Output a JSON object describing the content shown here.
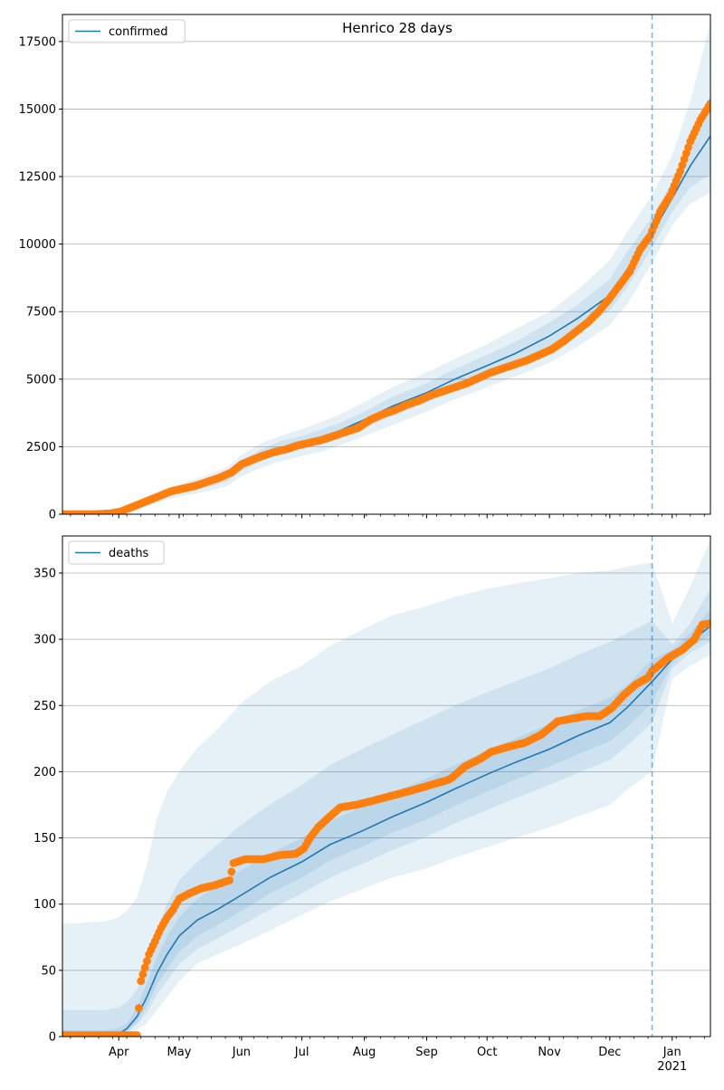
{
  "chart_data": [
    {
      "type": "line",
      "title": "Henrico 28 days",
      "xlabel": "",
      "ylabel": "",
      "x_range": [
        "2020-03-04",
        "2021-01-20"
      ],
      "ylim": [
        0,
        18500
      ],
      "yticks": [
        0,
        2500,
        5000,
        7500,
        10000,
        12500,
        15000,
        17500
      ],
      "grid": "y",
      "legend": {
        "position": "top-left",
        "entries": [
          "confirmed"
        ]
      },
      "forecast_start": "2020-12-22",
      "series": [
        {
          "name": "confirmed",
          "kind": "model-median",
          "color": "#1f77b4",
          "x": [
            "2020-03-04",
            "2020-03-25",
            "2020-04-05",
            "2020-04-15",
            "2020-04-25",
            "2020-05-05",
            "2020-05-15",
            "2020-05-25",
            "2020-06-01",
            "2020-06-10",
            "2020-06-20",
            "2020-07-01",
            "2020-07-10",
            "2020-07-20",
            "2020-08-01",
            "2020-08-15",
            "2020-09-01",
            "2020-09-15",
            "2020-10-01",
            "2020-10-15",
            "2020-11-01",
            "2020-11-15",
            "2020-12-01",
            "2020-12-10",
            "2020-12-22",
            "2021-01-01",
            "2021-01-10",
            "2021-01-20"
          ],
          "y": [
            0,
            0,
            150,
            450,
            750,
            950,
            1150,
            1400,
            1800,
            2150,
            2450,
            2650,
            2850,
            3100,
            3500,
            4000,
            4500,
            5000,
            5500,
            5950,
            6600,
            7250,
            8100,
            9100,
            10400,
            11700,
            12900,
            14000
          ]
        },
        {
          "name": "confirmed (observed)",
          "kind": "observed",
          "color": "#ff7f0e",
          "x": [
            "2020-03-04",
            "2020-03-20",
            "2020-03-28",
            "2020-04-02",
            "2020-04-07",
            "2020-04-12",
            "2020-04-17",
            "2020-04-22",
            "2020-04-27",
            "2020-05-03",
            "2020-05-09",
            "2020-05-15",
            "2020-05-21",
            "2020-05-27",
            "2020-06-01",
            "2020-06-06",
            "2020-06-11",
            "2020-06-17",
            "2020-06-23",
            "2020-06-29",
            "2020-07-05",
            "2020-07-11",
            "2020-07-17",
            "2020-07-23",
            "2020-07-29",
            "2020-08-04",
            "2020-08-10",
            "2020-08-16",
            "2020-08-22",
            "2020-08-28",
            "2020-09-03",
            "2020-09-09",
            "2020-09-15",
            "2020-09-21",
            "2020-09-27",
            "2020-10-03",
            "2020-10-09",
            "2020-10-15",
            "2020-10-21",
            "2020-10-27",
            "2020-11-02",
            "2020-11-08",
            "2020-11-14",
            "2020-11-20",
            "2020-11-26",
            "2020-12-01",
            "2020-12-06",
            "2020-12-11",
            "2020-12-16",
            "2020-12-21",
            "2020-12-26",
            "2020-12-31",
            "2021-01-05",
            "2021-01-10",
            "2021-01-15",
            "2021-01-20"
          ],
          "y": [
            0,
            0,
            30,
            100,
            250,
            400,
            550,
            700,
            850,
            950,
            1050,
            1200,
            1350,
            1550,
            1850,
            2000,
            2150,
            2300,
            2400,
            2550,
            2650,
            2750,
            2900,
            3050,
            3200,
            3500,
            3700,
            3850,
            4050,
            4200,
            4400,
            4550,
            4700,
            4850,
            5050,
            5250,
            5400,
            5550,
            5700,
            5900,
            6100,
            6400,
            6750,
            7100,
            7550,
            8000,
            8500,
            9000,
            9800,
            10300,
            11200,
            11800,
            12700,
            13800,
            14600,
            15200
          ]
        }
      ],
      "bands": [
        {
          "x": [
            "2020-03-04",
            "2020-03-25",
            "2020-04-05",
            "2020-04-15",
            "2020-04-25",
            "2020-05-05",
            "2020-05-15",
            "2020-05-25",
            "2020-06-01",
            "2020-06-10",
            "2020-06-20",
            "2020-07-01",
            "2020-07-10",
            "2020-07-20",
            "2020-08-01",
            "2020-08-15",
            "2020-09-01",
            "2020-09-15",
            "2020-10-01",
            "2020-10-15",
            "2020-11-01",
            "2020-11-15",
            "2020-12-01",
            "2020-12-10",
            "2020-12-22",
            "2021-01-01",
            "2021-01-10",
            "2021-01-20"
          ],
          "lower": [
            0,
            0,
            100,
            300,
            550,
            700,
            850,
            1050,
            1400,
            1700,
            1950,
            2150,
            2300,
            2550,
            2900,
            3300,
            3800,
            4250,
            4700,
            5100,
            5600,
            6200,
            7000,
            7800,
            9300,
            10700,
            11500,
            11900
          ],
          "upper": [
            0,
            20,
            200,
            600,
            950,
            1200,
            1450,
            1750,
            2200,
            2600,
            2900,
            3150,
            3400,
            3700,
            4150,
            4700,
            5250,
            5750,
            6300,
            6850,
            7500,
            8300,
            9400,
            10500,
            11800,
            13300,
            15300,
            18200
          ]
        },
        {
          "x": [
            "2020-03-04",
            "2020-03-25",
            "2020-04-05",
            "2020-04-15",
            "2020-04-25",
            "2020-05-05",
            "2020-05-15",
            "2020-05-25",
            "2020-06-01",
            "2020-06-10",
            "2020-06-20",
            "2020-07-01",
            "2020-07-10",
            "2020-07-20",
            "2020-08-01",
            "2020-08-15",
            "2020-09-01",
            "2020-09-15",
            "2020-10-01",
            "2020-10-15",
            "2020-11-01",
            "2020-11-15",
            "2020-12-01",
            "2020-12-10",
            "2020-12-22",
            "2021-01-01",
            "2021-01-10",
            "2021-01-20"
          ],
          "lower": [
            0,
            0,
            120,
            380,
            650,
            830,
            1000,
            1220,
            1600,
            1930,
            2200,
            2400,
            2580,
            2820,
            3200,
            3650,
            4150,
            4620,
            5100,
            5520,
            6100,
            6750,
            7550,
            8450,
            9850,
            11200,
            12100,
            12600
          ],
          "upper": [
            0,
            10,
            180,
            520,
            850,
            1070,
            1300,
            1580,
            2000,
            2370,
            2700,
            2900,
            3120,
            3380,
            3800,
            4350,
            4850,
            5380,
            5900,
            6380,
            7100,
            7750,
            8700,
            9750,
            11000,
            12300,
            13900,
            15500
          ]
        }
      ]
    },
    {
      "type": "line",
      "title": "",
      "xlabel": "",
      "ylabel": "",
      "x_range": [
        "2020-03-04",
        "2021-01-20"
      ],
      "ylim": [
        0,
        378
      ],
      "yticks": [
        0,
        50,
        100,
        150,
        200,
        250,
        300,
        350
      ],
      "xticks": [
        {
          "date": "2020-04-01",
          "label": "Apr"
        },
        {
          "date": "2020-05-01",
          "label": "May"
        },
        {
          "date": "2020-06-01",
          "label": "Jun"
        },
        {
          "date": "2020-07-01",
          "label": "Jul"
        },
        {
          "date": "2020-08-01",
          "label": "Aug"
        },
        {
          "date": "2020-09-01",
          "label": "Sep"
        },
        {
          "date": "2020-10-01",
          "label": "Oct"
        },
        {
          "date": "2020-11-01",
          "label": "Nov"
        },
        {
          "date": "2020-12-01",
          "label": "Dec"
        },
        {
          "date": "2021-01-01",
          "label": "Jan",
          "sublabel": "2021"
        }
      ],
      "grid": "y",
      "legend": {
        "position": "top-left",
        "entries": [
          "deaths"
        ]
      },
      "forecast_start": "2020-12-22",
      "series": [
        {
          "name": "deaths",
          "kind": "model-median",
          "color": "#1f77b4",
          "x": [
            "2020-03-04",
            "2020-03-25",
            "2020-04-01",
            "2020-04-05",
            "2020-04-10",
            "2020-04-15",
            "2020-04-20",
            "2020-04-25",
            "2020-05-01",
            "2020-05-10",
            "2020-05-20",
            "2020-06-01",
            "2020-06-15",
            "2020-07-01",
            "2020-07-15",
            "2020-08-01",
            "2020-08-15",
            "2020-09-01",
            "2020-09-15",
            "2020-10-01",
            "2020-10-15",
            "2020-11-01",
            "2020-11-15",
            "2020-12-01",
            "2020-12-10",
            "2020-12-22",
            "2021-01-01",
            "2021-01-10",
            "2021-01-20"
          ],
          "y": [
            0,
            0,
            2,
            6,
            15,
            30,
            48,
            62,
            76,
            88,
            96,
            107,
            120,
            132,
            145,
            156,
            166,
            177,
            187,
            198,
            207,
            217,
            227,
            237,
            249,
            268,
            285,
            298,
            310
          ]
        },
        {
          "name": "deaths (observed)",
          "kind": "observed",
          "color": "#ff7f0e",
          "x": [
            "2020-03-04",
            "2020-03-30",
            "2020-04-10",
            "2020-04-12",
            "2020-04-14",
            "2020-04-16",
            "2020-04-19",
            "2020-04-22",
            "2020-04-25",
            "2020-04-28",
            "2020-05-01",
            "2020-05-06",
            "2020-05-12",
            "2020-05-18",
            "2020-05-26",
            "2020-05-28",
            "2020-06-03",
            "2020-06-12",
            "2020-06-20",
            "2020-06-28",
            "2020-07-02",
            "2020-07-05",
            "2020-07-09",
            "2020-07-14",
            "2020-07-20",
            "2020-07-28",
            "2020-08-05",
            "2020-08-15",
            "2020-08-25",
            "2020-09-03",
            "2020-09-12",
            "2020-09-14",
            "2020-09-20",
            "2020-09-28",
            "2020-10-03",
            "2020-10-12",
            "2020-10-20",
            "2020-10-28",
            "2020-11-05",
            "2020-11-12",
            "2020-11-20",
            "2020-11-26",
            "2020-12-02",
            "2020-12-08",
            "2020-12-14",
            "2020-12-20",
            "2020-12-22",
            "2020-12-30",
            "2021-01-06",
            "2021-01-12",
            "2021-01-16",
            "2021-01-20"
          ],
          "y": [
            1,
            1,
            1,
            42,
            52,
            62,
            72,
            82,
            90,
            96,
            104,
            108,
            112,
            114,
            118,
            131,
            134,
            134,
            137,
            138,
            142,
            150,
            158,
            165,
            173,
            175,
            178,
            182,
            186,
            190,
            194,
            196,
            204,
            210,
            215,
            219,
            222,
            228,
            238,
            240,
            242,
            242,
            248,
            258,
            266,
            271,
            276,
            286,
            292,
            300,
            311,
            312
          ]
        }
      ],
      "bands": [
        {
          "x": [
            "2020-03-04",
            "2020-03-25",
            "2020-04-01",
            "2020-04-05",
            "2020-04-10",
            "2020-04-15",
            "2020-04-20",
            "2020-04-25",
            "2020-05-01",
            "2020-05-10",
            "2020-05-20",
            "2020-06-01",
            "2020-06-15",
            "2020-07-01",
            "2020-07-15",
            "2020-08-01",
            "2020-08-15",
            "2020-09-01",
            "2020-09-15",
            "2020-10-01",
            "2020-10-15",
            "2020-11-01",
            "2020-11-15",
            "2020-12-01",
            "2020-12-10",
            "2020-12-22",
            "2021-01-01",
            "2021-01-10",
            "2021-01-20"
          ],
          "lower": [
            0,
            0,
            0,
            2,
            5,
            10,
            20,
            30,
            42,
            55,
            62,
            70,
            80,
            92,
            102,
            112,
            120,
            127,
            135,
            143,
            150,
            158,
            166,
            175,
            187,
            200,
            270,
            280,
            288
          ],
          "upper": [
            85,
            87,
            90,
            95,
            105,
            130,
            165,
            185,
            200,
            218,
            232,
            252,
            268,
            280,
            295,
            308,
            318,
            325,
            332,
            338,
            342,
            346,
            350,
            352,
            355,
            358,
            312,
            340,
            375
          ]
        },
        {
          "x": [
            "2020-03-04",
            "2020-03-25",
            "2020-04-01",
            "2020-04-05",
            "2020-04-10",
            "2020-04-15",
            "2020-04-20",
            "2020-04-25",
            "2020-05-01",
            "2020-05-10",
            "2020-05-20",
            "2020-06-01",
            "2020-06-15",
            "2020-07-01",
            "2020-07-15",
            "2020-08-01",
            "2020-08-15",
            "2020-09-01",
            "2020-09-15",
            "2020-10-01",
            "2020-10-15",
            "2020-11-01",
            "2020-11-15",
            "2020-12-01",
            "2020-12-10",
            "2020-12-22",
            "2021-01-01",
            "2021-01-10",
            "2021-01-20"
          ],
          "lower": [
            0,
            0,
            0,
            3,
            9,
            18,
            32,
            42,
            55,
            66,
            74,
            84,
            96,
            108,
            120,
            131,
            141,
            151,
            161,
            171,
            180,
            190,
            199,
            209,
            220,
            237,
            278,
            290,
            298
          ],
          "upper": [
            20,
            20,
            22,
            26,
            35,
            55,
            80,
            100,
            118,
            132,
            145,
            160,
            175,
            190,
            205,
            218,
            228,
            240,
            250,
            260,
            268,
            278,
            288,
            298,
            305,
            314,
            296,
            312,
            338
          ]
        },
        {
          "x": [
            "2020-03-04",
            "2020-03-25",
            "2020-04-01",
            "2020-04-05",
            "2020-04-10",
            "2020-04-15",
            "2020-04-20",
            "2020-04-25",
            "2020-05-01",
            "2020-05-10",
            "2020-05-20",
            "2020-06-01",
            "2020-06-15",
            "2020-07-01",
            "2020-07-15",
            "2020-08-01",
            "2020-08-15",
            "2020-09-01",
            "2020-09-15",
            "2020-10-01",
            "2020-10-15",
            "2020-11-01",
            "2020-11-15",
            "2020-12-01",
            "2020-12-10",
            "2020-12-22",
            "2021-01-01",
            "2021-01-10",
            "2021-01-20"
          ],
          "lower": [
            0,
            0,
            1,
            4,
            11,
            23,
            39,
            51,
            64,
            76,
            84,
            95,
            108,
            120,
            133,
            144,
            154,
            164,
            174,
            185,
            194,
            204,
            213,
            223,
            234,
            252,
            282,
            294,
            303
          ],
          "upper": [
            5,
            5,
            6,
            10,
            22,
            40,
            60,
            76,
            90,
            104,
            114,
            126,
            138,
            150,
            163,
            174,
            184,
            195,
            205,
            216,
            225,
            236,
            246,
            256,
            266,
            285,
            292,
            305,
            322
          ]
        }
      ]
    }
  ],
  "colors": {
    "median": "#1f77b4",
    "observed": "#ff7f0e",
    "band": "#1f77b4",
    "grid": "#b0b0b0",
    "forecast_line": "#1f77b4"
  }
}
